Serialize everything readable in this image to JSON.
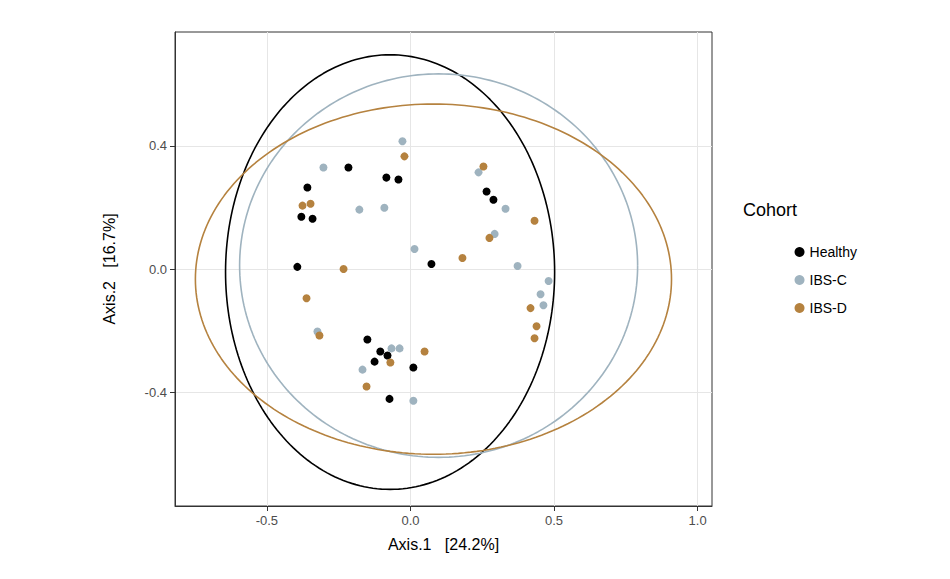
{
  "chart_data": {
    "type": "scatter",
    "x_label": "Axis.1   [24.2%]",
    "y_label": "Axis.2   [16.7%]",
    "xlim": [
      -0.82,
      1.05
    ],
    "ylim": [
      -0.77,
      0.77
    ],
    "xticks": [
      -0.5,
      {
        "value": 0,
        "label": "0.0"
      },
      0.5,
      {
        "value": 1,
        "label": "1.0"
      }
    ],
    "yticks": [
      -0.4,
      {
        "value": 0,
        "label": "0.0"
      },
      0.4
    ],
    "grid": true,
    "legend": "right",
    "legend_title": "Cohort",
    "marker": "circle",
    "series": [
      {
        "name": "Healthy",
        "color": "#000000",
        "x": [
          -0.216,
          -0.084,
          -0.042,
          -0.359,
          -0.38,
          -0.341,
          -0.394,
          0.073,
          0.265,
          0.289,
          -0.15,
          -0.125,
          -0.105,
          -0.08,
          0.01,
          -0.073
        ],
        "values": [
          0.33,
          0.297,
          0.291,
          0.265,
          0.17,
          0.163,
          0.007,
          0.016,
          0.252,
          0.225,
          -0.229,
          -0.301,
          -0.268,
          -0.281,
          -0.32,
          -0.422
        ],
        "ellipse": {
          "center": [
            -0.071,
            -0.01
          ],
          "radii": [
            0.573,
            0.706
          ]
        }
      },
      {
        "name": "IBS-C",
        "color": "#9fb3bf",
        "x": [
          -0.028,
          -0.303,
          -0.178,
          -0.091,
          0.014,
          0.237,
          0.331,
          0.293,
          0.373,
          0.481,
          0.453,
          0.463,
          -0.324,
          -0.167,
          -0.066,
          -0.038,
          0.01
        ],
        "values": [
          0.415,
          0.33,
          0.193,
          0.199,
          0.065,
          0.314,
          0.196,
          0.114,
          0.01,
          -0.039,
          -0.082,
          -0.118,
          -0.203,
          -0.327,
          -0.258,
          -0.258,
          -0.428
        ],
        "ellipse": {
          "center": [
            0.098,
            0.011
          ],
          "radii": [
            0.693,
            0.623
          ]
        }
      },
      {
        "name": "IBS-D",
        "color": "#b5823f",
        "x": [
          -0.021,
          0.254,
          -0.348,
          -0.376,
          -0.233,
          0.181,
          0.275,
          0.432,
          -0.362,
          -0.317,
          0.418,
          0.439,
          0.432,
          0.049,
          -0.07,
          -0.153
        ],
        "values": [
          0.366,
          0.333,
          0.212,
          0.206,
          0.0,
          0.036,
          0.101,
          0.157,
          -0.095,
          -0.216,
          -0.127,
          -0.186,
          -0.225,
          -0.268,
          -0.304,
          -0.382
        ],
        "ellipse": {
          "center": [
            0.08,
            -0.033
          ],
          "radii": [
            0.829,
            0.569
          ]
        }
      }
    ]
  }
}
